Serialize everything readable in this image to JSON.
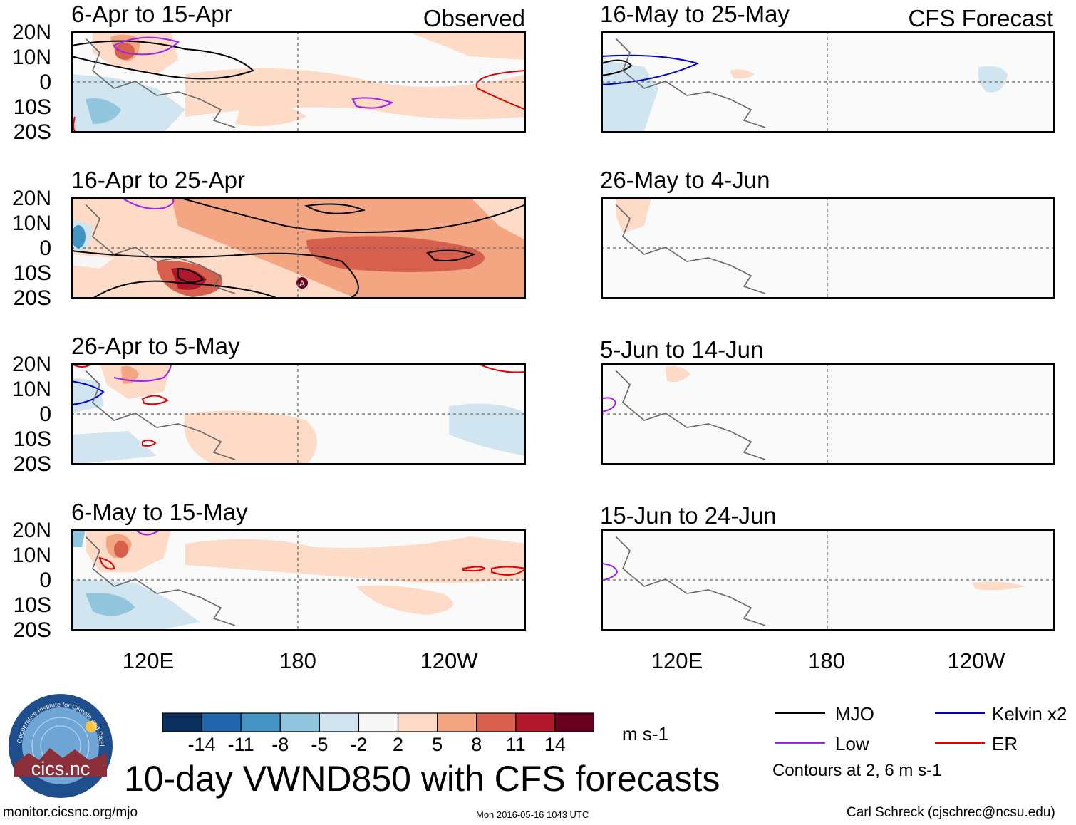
{
  "headers": {
    "observed": "Observed",
    "forecast": "CFS Forecast"
  },
  "lat_labels": [
    "20N",
    "10N",
    "0",
    "10S",
    "20S"
  ],
  "lon_labels": [
    "120E",
    "180",
    "120W"
  ],
  "panels": {
    "observed": [
      {
        "title": "6-Apr to 15-Apr"
      },
      {
        "title": "16-Apr to 25-Apr"
      },
      {
        "title": "26-Apr to 5-May"
      },
      {
        "title": "6-May to 15-May"
      }
    ],
    "forecast": [
      {
        "title": "16-May to 25-May"
      },
      {
        "title": "26-May to 4-Jun"
      },
      {
        "title": "5-Jun to 14-Jun"
      },
      {
        "title": "15-Jun to 24-Jun"
      }
    ]
  },
  "colorbar": {
    "labels": [
      "-14",
      "-11",
      "-8",
      "-5",
      "-2",
      "2",
      "5",
      "8",
      "11",
      "14"
    ],
    "colors": [
      "#0a2f5e",
      "#2166ac",
      "#4393c3",
      "#92c5de",
      "#d1e5f0",
      "#f7f7f7",
      "#fddbc7",
      "#f4a582",
      "#d6604d",
      "#b2182b",
      "#67001f"
    ],
    "units": "m s-1"
  },
  "legend": {
    "mjo": {
      "label": "MJO",
      "color": "#000000"
    },
    "low": {
      "label": "Low",
      "color": "#a020f0"
    },
    "kelvin": {
      "label": "Kelvin x2",
      "color": "#0000cd"
    },
    "er": {
      "label": "ER",
      "color": "#e00000"
    },
    "note": "Contours at 2, 6 m s-1"
  },
  "marker": "A",
  "title": "10-day VWND850 with CFS forecasts",
  "logo_text": "cics.nc",
  "logo_ring": "Cooperative Institute for Climate and Satellites",
  "footer": {
    "url": "monitor.cicsnc.org/mjo",
    "timestamp": "Mon 2016-05-16 1043 UTC",
    "author": "Carl Schreck (cjschrec@ncsu.edu)"
  }
}
